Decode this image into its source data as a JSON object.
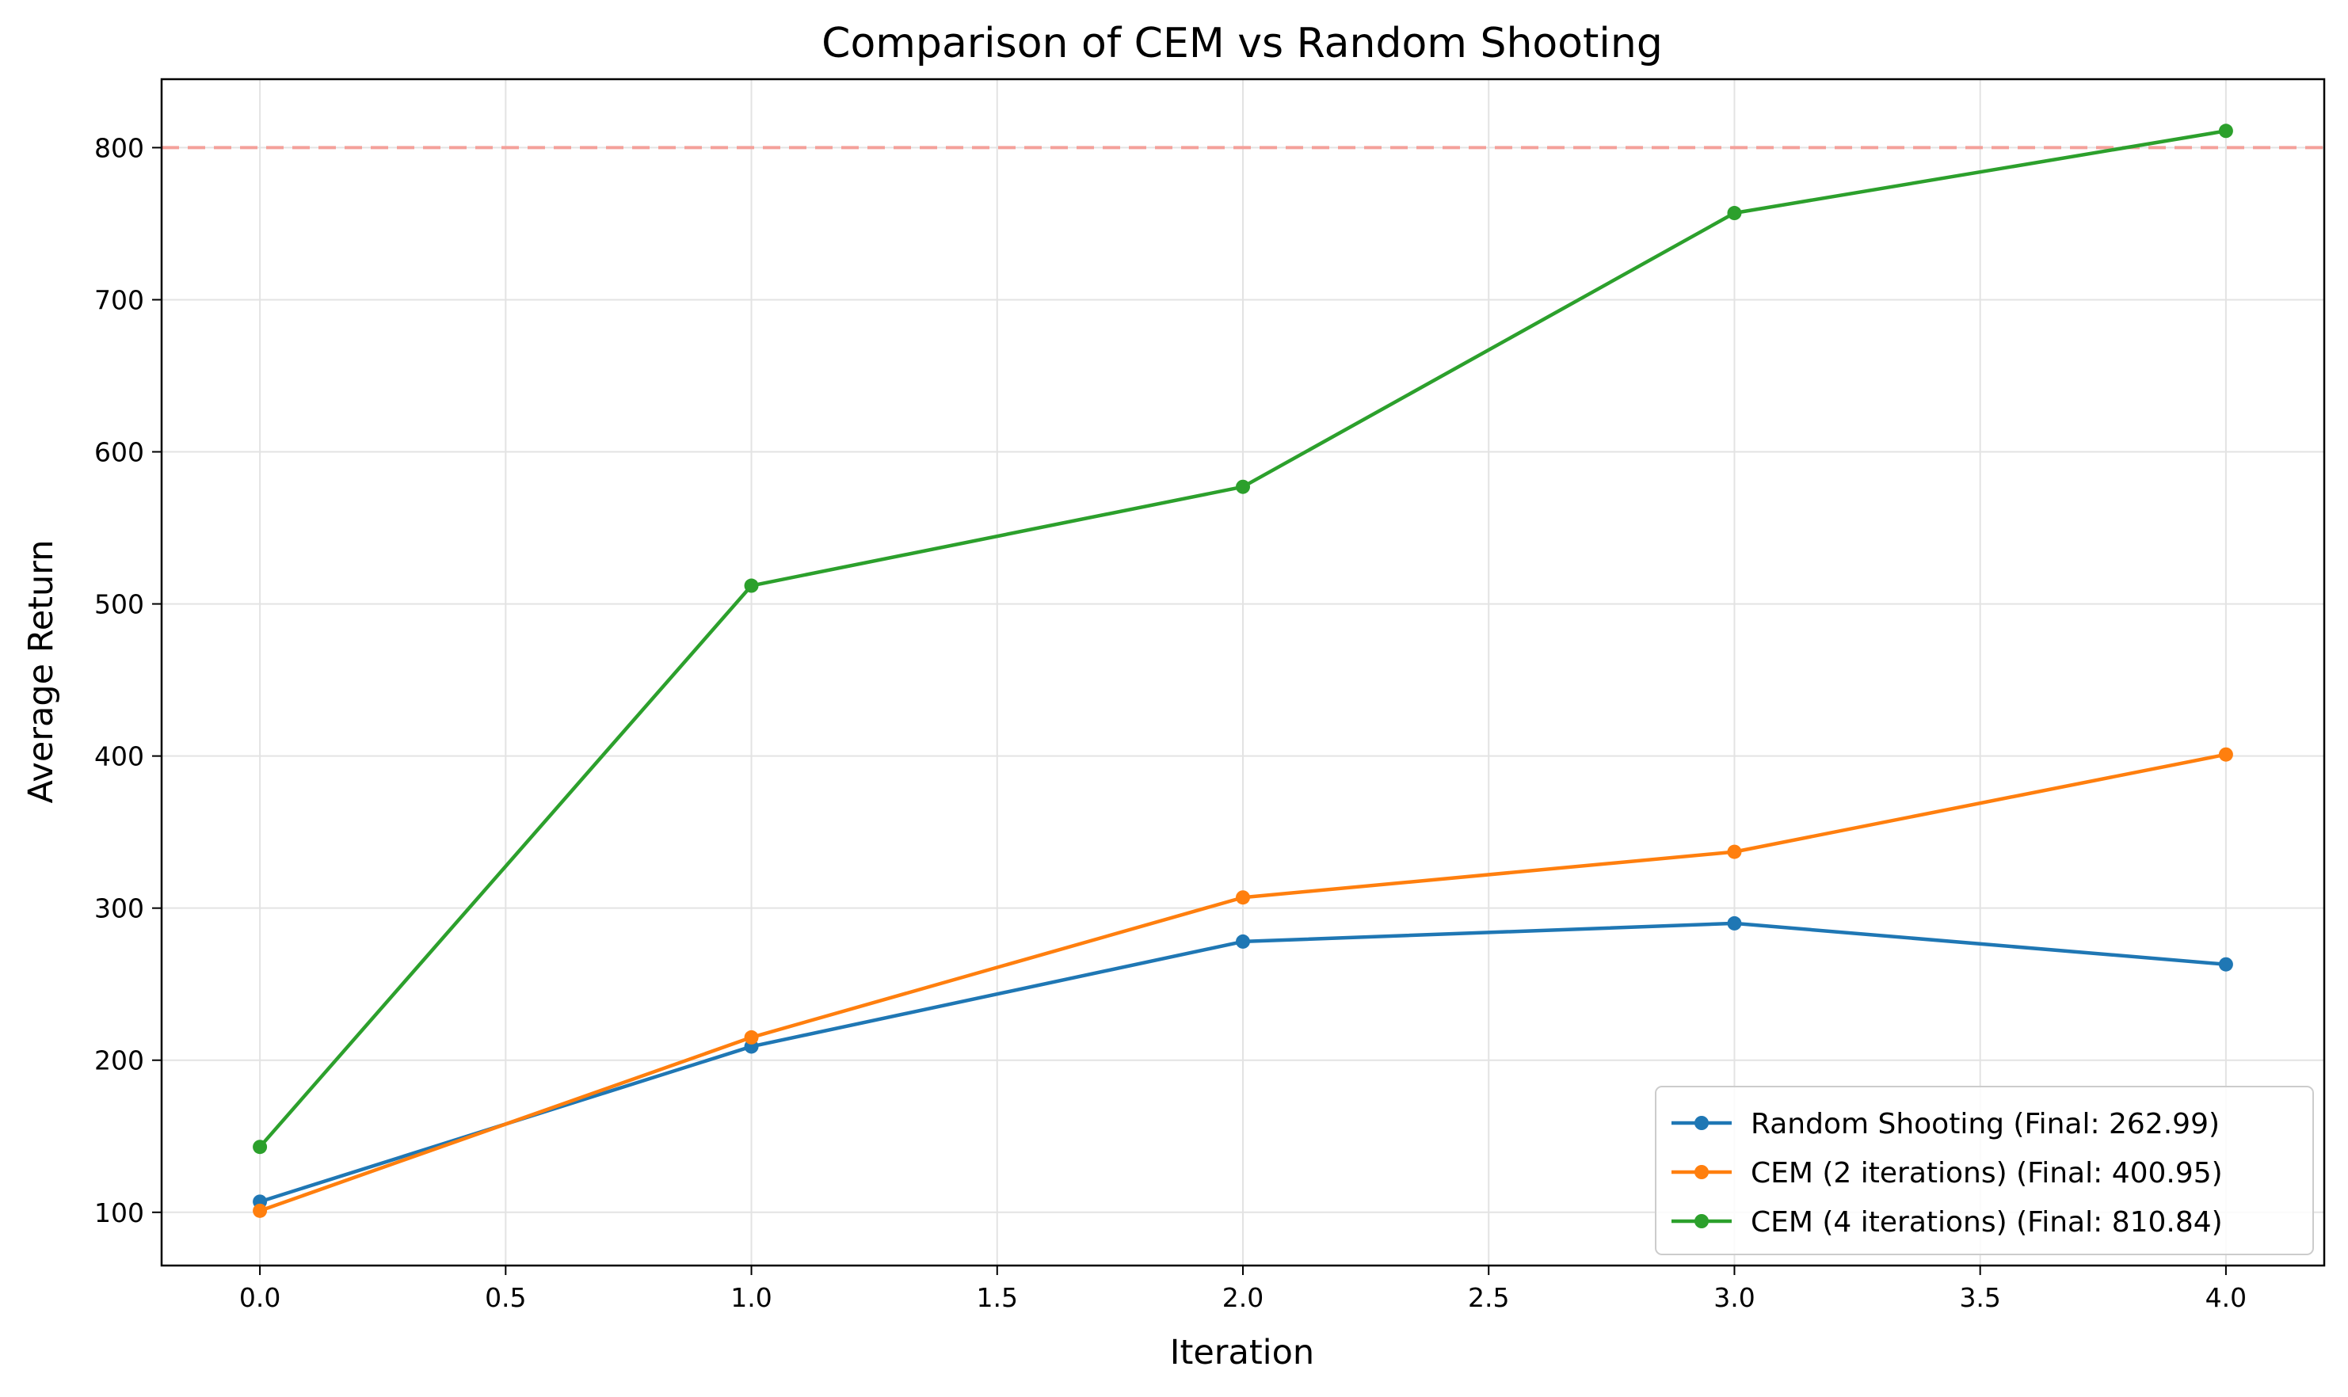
{
  "chart_data": {
    "type": "line",
    "title": "Comparison of CEM vs Random Shooting",
    "xlabel": "Iteration",
    "ylabel": "Average Return",
    "x": [
      0,
      1,
      2,
      3,
      4
    ],
    "xlim": [
      -0.2,
      4.2
    ],
    "ylim": [
      65,
      845
    ],
    "xticks": [
      "0.0",
      "0.5",
      "1.0",
      "1.5",
      "2.0",
      "2.5",
      "3.0",
      "3.5",
      "4.0"
    ],
    "yticks": [
      "100",
      "200",
      "300",
      "400",
      "500",
      "600",
      "700",
      "800"
    ],
    "grid": true,
    "legend_position": "lower-right",
    "reference_line": {
      "y": 800,
      "color": "#f4a09a",
      "style": "dashed"
    },
    "series": [
      {
        "name": "Random Shooting (Final: 262.99)",
        "color": "#1f77b4",
        "values": [
          107,
          209,
          278,
          290,
          263
        ]
      },
      {
        "name": "CEM (2 iterations) (Final: 400.95)",
        "color": "#ff7f0e",
        "values": [
          101,
          215,
          307,
          337,
          401
        ]
      },
      {
        "name": "CEM (4 iterations) (Final: 810.84)",
        "color": "#2ca02c",
        "values": [
          143,
          512,
          577,
          757,
          811
        ]
      }
    ]
  }
}
